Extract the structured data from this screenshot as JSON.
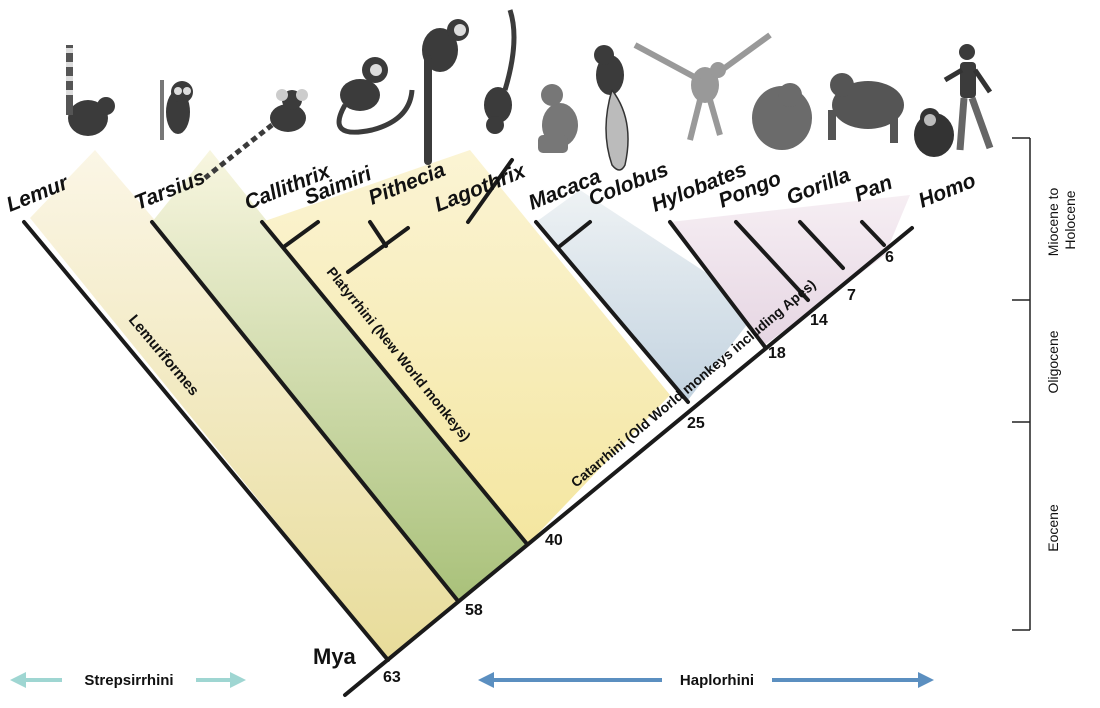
{
  "taxa": [
    "Lemur",
    "Tarsius",
    "Callithrix",
    "Saimiri",
    "Pithecia",
    "Lagothrix",
    "Macaca",
    "Colobus",
    "Hylobates",
    "Pongo",
    "Gorilla",
    "Pan",
    "Homo"
  ],
  "clades": {
    "lemuriformes": "Lemuriformes",
    "platyrrhini": "Platyrrhini (New World monkeys)",
    "catarrhini": "Catarrhini (Old World monkeys including Apes)"
  },
  "ages": {
    "a63": "63",
    "a58": "58",
    "a40": "40",
    "a25": "25",
    "a18": "18",
    "a14": "14",
    "a7": "7",
    "a6": "6"
  },
  "mya_label": "Mya",
  "epochs": {
    "miocene": "Miocene to Holocene",
    "miocene_line1": "Miocene to",
    "miocene_line2": "Holocene",
    "oligocene": "Oligocene",
    "eocene": "Eocene"
  },
  "bottom": {
    "left_label": "Strepsirrhini",
    "right_label": "Haplorhini"
  },
  "colors": {
    "strepsirrhini_arrow": "#9fd6d2",
    "haplorhini_arrow": "#5b8fc0",
    "yellow_fill": "#f1e9a6",
    "green_fill": "#b9c98a",
    "blue_fill": "#c7d6e3",
    "pink_fill": "#ead9e6"
  },
  "icons": [
    "lemur-icon",
    "tarsier-icon",
    "marmoset-icon",
    "squirrel-monkey-icon",
    "saki-icon",
    "woolly-monkey-icon",
    "macaque-icon",
    "colobus-icon",
    "gibbon-icon",
    "orangutan-icon",
    "gorilla-icon",
    "chimpanzee-icon",
    "human-icon"
  ]
}
